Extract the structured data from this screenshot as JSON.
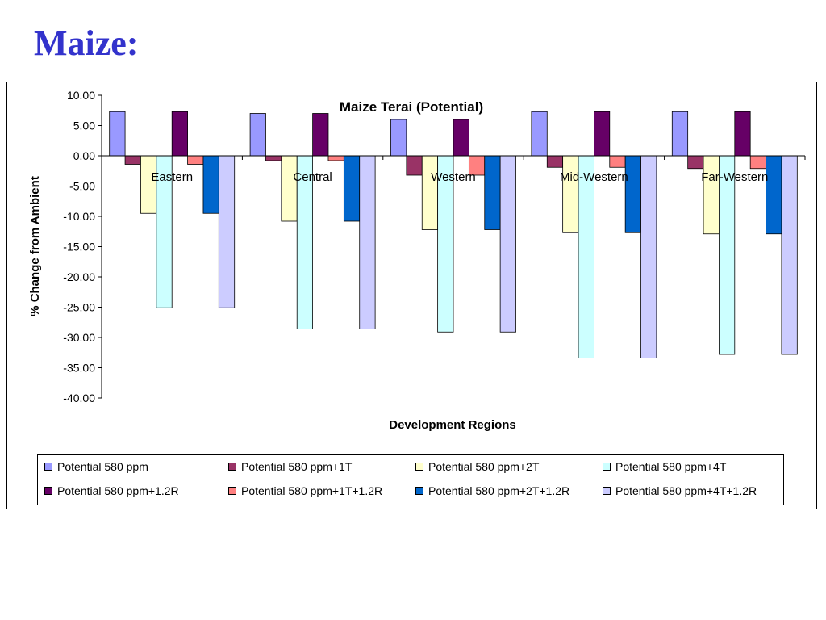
{
  "slide": {
    "title": "Maize:"
  },
  "chart_data": {
    "type": "bar",
    "title": "Maize Terai (Potential)",
    "xlabel": "Development Regions",
    "ylabel": "% Change from Ambient",
    "ylim": [
      -40,
      10
    ],
    "yticks": [
      "10.00",
      "5.00",
      "0.00",
      "-5.00",
      "-10.00",
      "-15.00",
      "-20.00",
      "-25.00",
      "-30.00",
      "-35.00",
      "-40.00"
    ],
    "categories": [
      "Eastern",
      "Central",
      "Western",
      "Mid-Western",
      "Far-Western"
    ],
    "grid": false,
    "legend_position": "bottom",
    "series": [
      {
        "name": "Potential 580 ppm",
        "color": "#9999FF",
        "values": [
          7.3,
          7.0,
          6.0,
          7.3,
          7.3
        ]
      },
      {
        "name": "Potential 580 ppm+1T",
        "color": "#993366",
        "values": [
          -1.4,
          -0.8,
          -3.2,
          -1.9,
          -2.1
        ]
      },
      {
        "name": "Potential 580 ppm+2T",
        "color": "#FFFFCC",
        "values": [
          -9.5,
          -10.8,
          -12.2,
          -12.7,
          -12.9
        ]
      },
      {
        "name": "Potential 580 ppm+4T",
        "color": "#CCFFFF",
        "values": [
          -25.1,
          -28.6,
          -29.1,
          -33.4,
          -32.8
        ]
      },
      {
        "name": "Potential 580 ppm+1.2R",
        "color": "#660066",
        "values": [
          7.3,
          7.0,
          6.0,
          7.3,
          7.3
        ]
      },
      {
        "name": "Potential 580 ppm+1T+1.2R",
        "color": "#FF8080",
        "values": [
          -1.4,
          -0.8,
          -3.2,
          -1.9,
          -2.1
        ]
      },
      {
        "name": "Potential 580 ppm+2T+1.2R",
        "color": "#0066CC",
        "values": [
          -9.5,
          -10.8,
          -12.2,
          -12.7,
          -12.9
        ]
      },
      {
        "name": "Potential 580 ppm+4T+1.2R",
        "color": "#CCCCFF",
        "values": [
          -25.1,
          -28.6,
          -29.1,
          -33.4,
          -32.8
        ]
      }
    ]
  }
}
